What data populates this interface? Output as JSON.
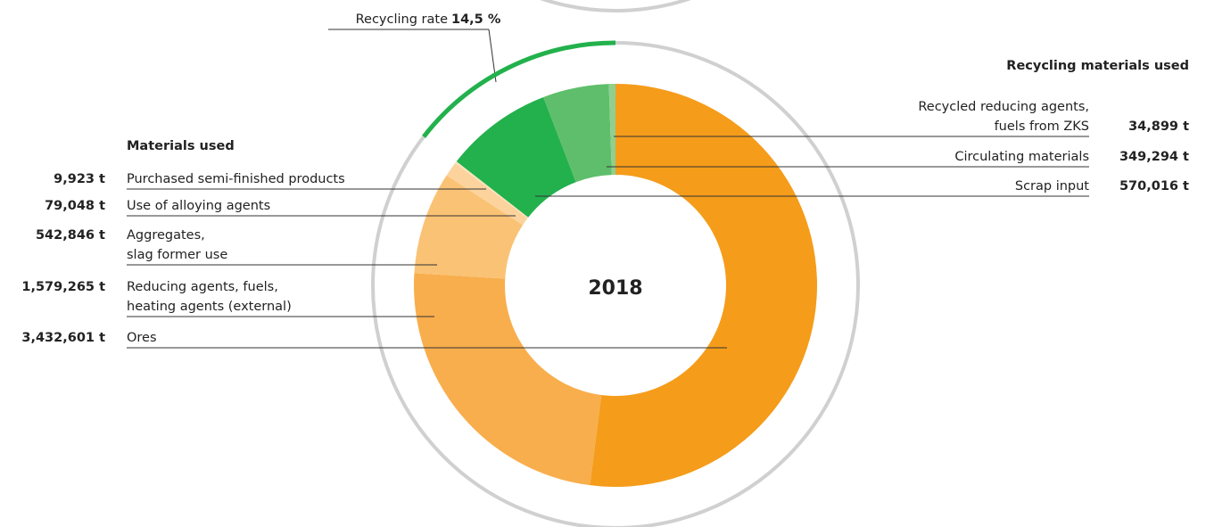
{
  "chart_data": {
    "type": "donut",
    "center_label": "2018",
    "recycling_rate": {
      "label": "Recycling rate",
      "value": 14.5,
      "value_label": "14,5 %",
      "color": "#22b14c"
    },
    "groups": [
      {
        "title": "Materials used",
        "side": "left",
        "items": [
          {
            "name": [
              "Purchased semi-finished products"
            ],
            "value": 9923,
            "value_label": "9,923 t",
            "color": "#fde2bf"
          },
          {
            "name": [
              "Use of alloying agents"
            ],
            "value": 79048,
            "value_label": "79,048 t",
            "color": "#fcd39c"
          },
          {
            "name": [
              "Aggregates,",
              "slag former use"
            ],
            "value": 542846,
            "value_label": "542,846 t",
            "color": "#fac274"
          },
          {
            "name": [
              "Reducing agents, fuels,",
              "heating agents (external)"
            ],
            "value": 1579265,
            "value_label": "1,579,265 t",
            "color": "#f8ae4c"
          },
          {
            "name": [
              "Ores"
            ],
            "value": 3432601,
            "value_label": "3,432,601 t",
            "color": "#f59c1a"
          }
        ]
      },
      {
        "title": "Recycling materials used",
        "side": "right",
        "items": [
          {
            "name": [
              "Recycled reducing agents,",
              "fuels from ZKS"
            ],
            "value": 34899,
            "value_label": "34,899 t",
            "color": "#8fd08f"
          },
          {
            "name": [
              "Circulating materials"
            ],
            "value": 349294,
            "value_label": "349,294 t",
            "color": "#5fbe6b"
          },
          {
            "name": [
              "Scrap input"
            ],
            "value": 570016,
            "value_label": "570,016 t",
            "color": "#22b14c"
          }
        ]
      }
    ]
  }
}
